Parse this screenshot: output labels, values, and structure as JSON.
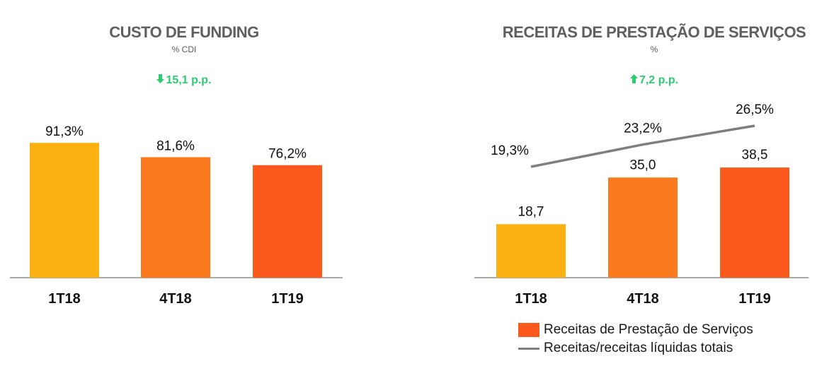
{
  "colors": {
    "bar_1": "#fcb112",
    "bar_2": "#fb7a1e",
    "bar_3": "#fc5a1c",
    "line": "#7f7f7f",
    "axis": "#8c8c8c",
    "title": "#5f5f5f",
    "delta_positive": "#2ecc71"
  },
  "chart_data": [
    {
      "type": "bar",
      "title": "CUSTO DE FUNDING",
      "subtitle": "% CDI",
      "delta": {
        "text": "15,1 p.p.",
        "direction": "down",
        "icon": "arrow-down-icon"
      },
      "categories": [
        "1T18",
        "4T18",
        "1T19"
      ],
      "values": [
        91.3,
        81.6,
        76.2
      ],
      "value_labels": [
        "91,3%",
        "81,6%",
        "76,2%"
      ],
      "ylim": [
        0,
        100
      ],
      "grid": false
    },
    {
      "type": "bar",
      "title": "RECEITAS DE PRESTAÇÃO DE SERVIÇOS",
      "subtitle": "%",
      "delta": {
        "text": "7,2 p.p.",
        "direction": "up",
        "icon": "arrow-up-icon"
      },
      "categories": [
        "1T18",
        "4T18",
        "1T19"
      ],
      "series": [
        {
          "name": "Receitas de Prestação de Serviços",
          "type": "bar",
          "values": [
            18.7,
            35.0,
            38.5
          ],
          "value_labels": [
            "18,7",
            "35,0",
            "38,5"
          ]
        },
        {
          "name": "Receitas/receitas líquidas totais",
          "type": "line",
          "values": [
            19.3,
            23.2,
            26.5
          ],
          "value_labels": [
            "19,3%",
            "23,2%",
            "26,5%"
          ]
        }
      ],
      "ylim": [
        0,
        50
      ],
      "grid": false,
      "legend": "bottom"
    }
  ]
}
